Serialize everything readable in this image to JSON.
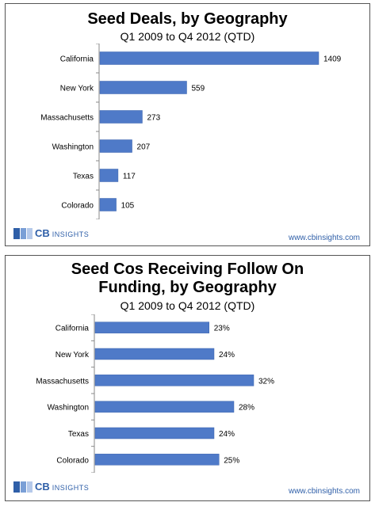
{
  "colors": {
    "bar": "#4f7ac8",
    "bar_edge": "#3a63ad",
    "brand": "#2f5fa8"
  },
  "branding": {
    "logo_cb": "CB",
    "logo_insights": "INSIGHTS",
    "url": "www.cbinsights.com"
  },
  "chart_data": [
    {
      "type": "bar",
      "orientation": "horizontal",
      "title": "Seed Deals, by Geography",
      "subtitle": "Q1 2009 to Q4 2012 (QTD)",
      "categories": [
        "California",
        "New York",
        "Massachusetts",
        "Washington",
        "Texas",
        "Colorado"
      ],
      "values": [
        1409,
        559,
        273,
        207,
        117,
        105
      ],
      "value_labels": [
        "1409",
        "559",
        "273",
        "207",
        "117",
        "105"
      ],
      "xlim": [
        0,
        1409
      ],
      "grid": false,
      "legend": "none"
    },
    {
      "type": "bar",
      "orientation": "horizontal",
      "title": "Seed Cos Receiving Follow On Funding, by Geography",
      "subtitle": "Q1 2009 to Q4 2012 (QTD)",
      "categories": [
        "California",
        "New York",
        "Massachusetts",
        "Washington",
        "Texas",
        "Colorado"
      ],
      "values": [
        23,
        24,
        32,
        28,
        24,
        25
      ],
      "value_labels": [
        "23%",
        "24%",
        "32%",
        "28%",
        "24%",
        "25%"
      ],
      "xlim": [
        0,
        32
      ],
      "grid": false,
      "legend": "none"
    }
  ]
}
